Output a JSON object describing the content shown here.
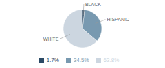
{
  "chart_data": {
    "type": "pie",
    "categories": [
      "WHITE",
      "HISPANIC",
      "BLACK"
    ],
    "values": [
      63.8,
      34.5,
      1.7
    ],
    "value_labels": [
      "63.8%",
      "34.5%",
      "1.7%"
    ],
    "colors": [
      "#ccd6e0",
      "#7899b0",
      "#2b4a65"
    ],
    "legend": "bottom"
  }
}
